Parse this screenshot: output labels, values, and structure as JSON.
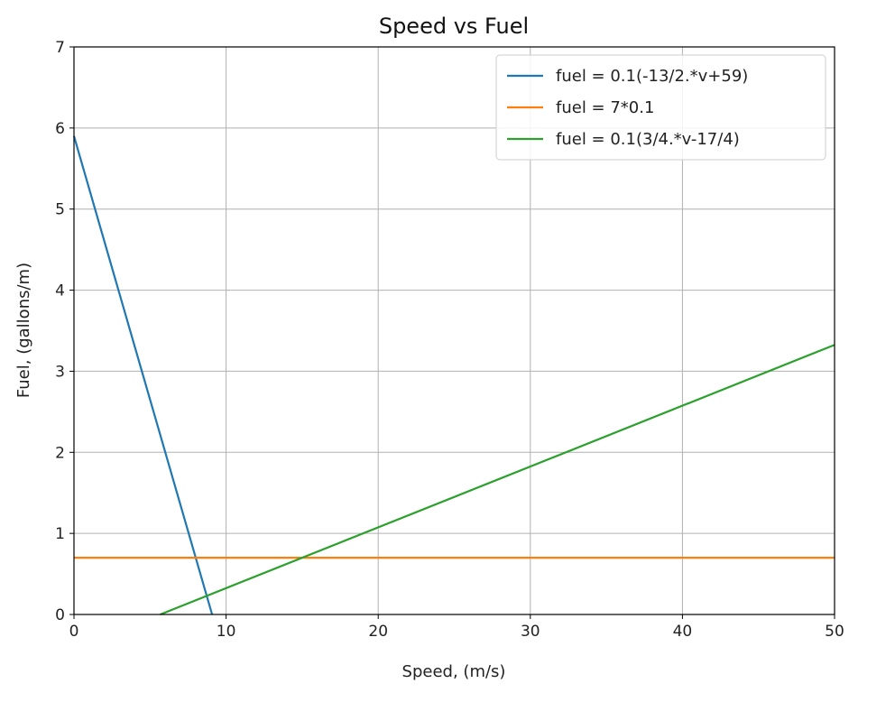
{
  "chart_data": {
    "type": "line",
    "title": "Speed vs Fuel",
    "xlabel": "Speed, (m/s)",
    "ylabel": "Fuel, (gallons/m)",
    "xlim": [
      0,
      50
    ],
    "ylim": [
      0,
      7
    ],
    "x_ticks": [
      0,
      10,
      20,
      30,
      40,
      50
    ],
    "y_ticks": [
      0,
      1,
      2,
      3,
      4,
      5,
      6,
      7
    ],
    "grid": true,
    "legend_position": "top-right",
    "series": [
      {
        "name": "fuel = 0.1(-13/2.*v+59)",
        "color": "#1f77b4",
        "x": [
          0,
          9.08
        ],
        "y": [
          5.9,
          0
        ]
      },
      {
        "name": "fuel = 7*0.1",
        "color": "#ff7f0e",
        "x": [
          0,
          50
        ],
        "y": [
          0.7,
          0.7
        ]
      },
      {
        "name": "fuel = 0.1(3/4.*v-17/4)",
        "color": "#2ca02c",
        "x": [
          5.67,
          50
        ],
        "y": [
          0,
          3.325
        ]
      }
    ]
  }
}
